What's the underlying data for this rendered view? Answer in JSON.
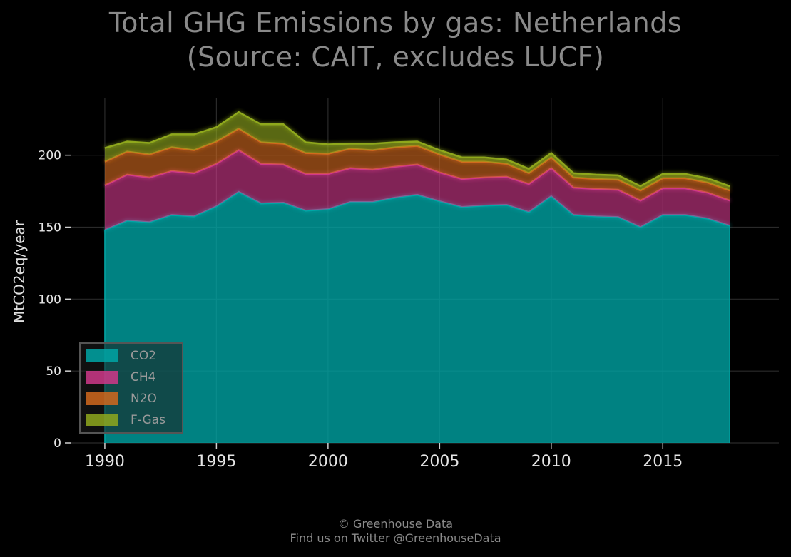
{
  "title_lines": [
    "Total GHG Emissions by gas: Netherlands",
    "(Source: CAIT, excludes LUCF)"
  ],
  "footer": {
    "line1": "© Greenhouse Data",
    "line2": "Find us on Twitter @GreenhouseData"
  },
  "colors": {
    "background": "#000000",
    "CO2": "#00a6a6",
    "CH4": "#d0388a",
    "N2O": "#d2691e",
    "F-Gas": "#8fa81e",
    "grid": "#2a2a2a"
  },
  "chart_data": {
    "type": "area",
    "stacked": true,
    "title": "Total GHG Emissions by gas: Netherlands (Source: CAIT, excludes LUCF)",
    "xlabel": "",
    "ylabel": "MtCO2eq/year",
    "x": [
      1990,
      1991,
      1992,
      1993,
      1994,
      1995,
      1996,
      1997,
      1998,
      1999,
      2000,
      2001,
      2002,
      2003,
      2004,
      2005,
      2006,
      2007,
      2008,
      2009,
      2010,
      2011,
      2012,
      2013,
      2014,
      2015,
      2016,
      2017,
      2018
    ],
    "xlim": [
      1988.5,
      2020.2
    ],
    "ylim": [
      0,
      240
    ],
    "xticks": [
      1990,
      1995,
      2000,
      2005,
      2010,
      2015
    ],
    "yticks": [
      0,
      50,
      100,
      150,
      200
    ],
    "grid": true,
    "legend_position": "lower-left",
    "series": [
      {
        "name": "CO2",
        "values": [
          148,
          154.5,
          153.5,
          158.5,
          157.5,
          164.5,
          174.5,
          166.5,
          167,
          161.5,
          162.5,
          167.5,
          167.5,
          170.5,
          172.5,
          168,
          164,
          165,
          165.5,
          160.5,
          171.5,
          158.5,
          157.5,
          157,
          150,
          158.5,
          158.5,
          156,
          151
        ]
      },
      {
        "name": "CH4",
        "values": [
          31,
          32,
          31,
          30.5,
          30,
          29.5,
          29,
          27.5,
          26.5,
          25.5,
          24.5,
          23.5,
          22.5,
          21.5,
          21,
          20,
          19.5,
          19.5,
          19.5,
          19.5,
          19.5,
          19,
          19,
          19,
          18.5,
          18.5,
          18.5,
          18,
          17.5
        ]
      },
      {
        "name": "N2O",
        "values": [
          16.5,
          16,
          16,
          16.5,
          16,
          15.5,
          15,
          15,
          14.5,
          14.5,
          14,
          13.5,
          13.5,
          13.5,
          13,
          12.5,
          12,
          11,
          9,
          7.5,
          7.5,
          7,
          7,
          7,
          7,
          7,
          7,
          7,
          7
        ]
      },
      {
        "name": "F-Gas",
        "values": [
          9.5,
          7,
          8,
          9,
          11,
          10,
          11.5,
          12.5,
          13.5,
          7.5,
          6.5,
          3.5,
          4.5,
          3.5,
          3,
          3,
          3,
          3,
          3,
          3,
          3,
          3,
          3,
          3,
          3,
          3,
          3,
          3,
          3
        ]
      }
    ]
  }
}
